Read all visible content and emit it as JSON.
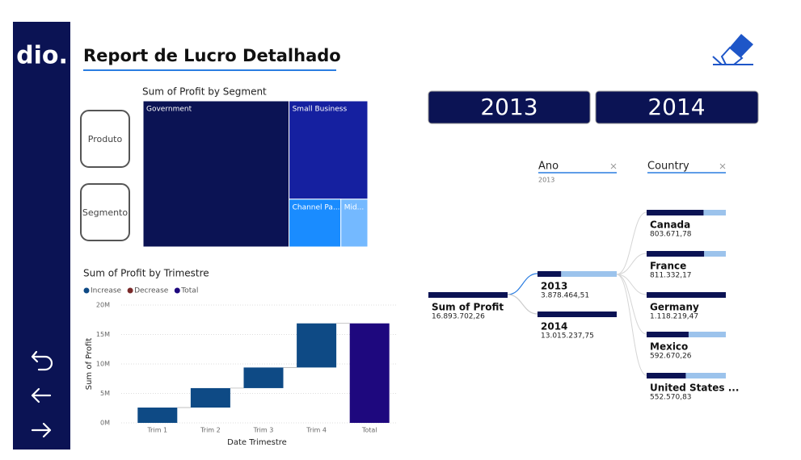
{
  "sidebar": {
    "logo": "dio."
  },
  "header": {
    "title": "Report de Lucro Detalhado"
  },
  "buttons": [
    "Produto",
    "Segmento"
  ],
  "year_slicer": [
    "2013",
    "2014"
  ],
  "chart_data": [
    {
      "type": "treemap",
      "title": "Sum of Profit by Segment",
      "categories": [
        "Government",
        "Small Business",
        "Channel Pa...",
        "Mid..."
      ],
      "values": [
        10.94,
        3.97,
        1.27,
        0.66
      ],
      "colors": [
        "#0b1354",
        "#1520a0",
        "#1a8cff",
        "#74b9ff"
      ]
    },
    {
      "type": "waterfall",
      "title": "Sum of Profit by Trimestre",
      "legend": [
        {
          "name": "Increase",
          "color": "#0e4a85"
        },
        {
          "name": "Decrease",
          "color": "#7a2a2a"
        },
        {
          "name": "Total",
          "color": "#1e087e"
        }
      ],
      "categories": [
        "Trim 1",
        "Trim 2",
        "Trim 3",
        "Trim 4",
        "Total"
      ],
      "values": [
        2.6,
        3.3,
        3.5,
        7.49,
        16.89
      ],
      "ylim": [
        0,
        20
      ],
      "yticks": [
        {
          "value": 0,
          "label": "0M"
        },
        {
          "value": 5,
          "label": "5M"
        },
        {
          "value": 10,
          "label": "10M"
        },
        {
          "value": 15,
          "label": "15M"
        },
        {
          "value": 20,
          "label": "20M"
        }
      ],
      "xlabel": "Date Trimestre",
      "ylabel": "Sum of Profit",
      "grid": true
    }
  ],
  "decomposition_tree": {
    "levels": [
      {
        "name": "Ano",
        "filter": "2013"
      },
      {
        "name": "Country"
      }
    ],
    "root": {
      "name": "Sum of Profit",
      "value": {
        "value": 16893702.26,
        "label": "16.893.702,26"
      }
    },
    "years": [
      {
        "name": "2013",
        "value": {
          "value": 3878464.51,
          "label": "3.878.464,51"
        }
      },
      {
        "name": "2014",
        "value": {
          "value": 13015237.75,
          "label": "13.015.237,75"
        }
      }
    ],
    "countries": [
      {
        "name": "Canada",
        "value": {
          "value": 803671.78,
          "label": "803.671,78"
        }
      },
      {
        "name": "France",
        "value": {
          "value": 811332.17,
          "label": "811.332,17"
        }
      },
      {
        "name": "Germany",
        "value": {
          "value": 1118219.47,
          "label": "1.118.219,47"
        }
      },
      {
        "name": "Mexico",
        "value": {
          "value": 592670.26,
          "label": "592.670,26"
        }
      },
      {
        "name": "United States ...",
        "value": {
          "value": 552570.83,
          "label": "552.570,83"
        }
      }
    ]
  }
}
